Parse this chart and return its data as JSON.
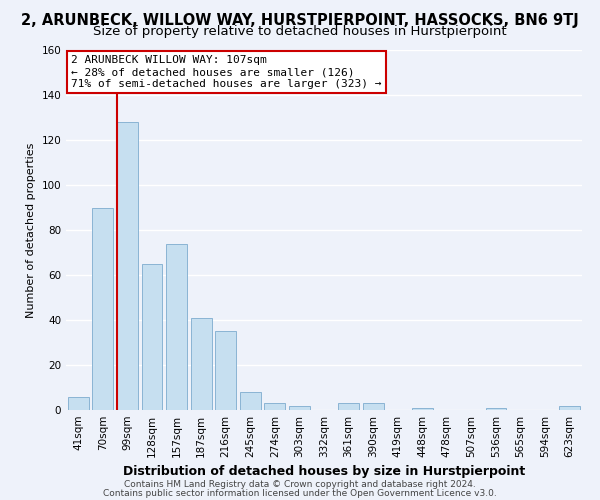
{
  "title": "2, ARUNBECK, WILLOW WAY, HURSTPIERPOINT, HASSOCKS, BN6 9TJ",
  "subtitle": "Size of property relative to detached houses in Hurstpierpoint",
  "xlabel": "Distribution of detached houses by size in Hurstpierpoint",
  "ylabel": "Number of detached properties",
  "bar_labels": [
    "41sqm",
    "70sqm",
    "99sqm",
    "128sqm",
    "157sqm",
    "187sqm",
    "216sqm",
    "245sqm",
    "274sqm",
    "303sqm",
    "332sqm",
    "361sqm",
    "390sqm",
    "419sqm",
    "448sqm",
    "478sqm",
    "507sqm",
    "536sqm",
    "565sqm",
    "594sqm",
    "623sqm"
  ],
  "bar_values": [
    6,
    90,
    128,
    65,
    74,
    41,
    35,
    8,
    3,
    2,
    0,
    3,
    3,
    0,
    1,
    0,
    0,
    1,
    0,
    0,
    2
  ],
  "bar_color": "#c6dff0",
  "bar_edge_color": "#8ab4d4",
  "ylim": [
    0,
    160
  ],
  "yticks": [
    0,
    20,
    40,
    60,
    80,
    100,
    120,
    140,
    160
  ],
  "vline_x": 2.0,
  "vline_color": "#cc0000",
  "annotation_line1": "2 ARUNBECK WILLOW WAY: 107sqm",
  "annotation_line2": "← 28% of detached houses are smaller (126)",
  "annotation_line3": "71% of semi-detached houses are larger (323) →",
  "footer1": "Contains HM Land Registry data © Crown copyright and database right 2024.",
  "footer2": "Contains public sector information licensed under the Open Government Licence v3.0.",
  "background_color": "#eef2fa",
  "plot_bg_color": "#eef2fa",
  "grid_color": "#ffffff",
  "title_fontsize": 10.5,
  "subtitle_fontsize": 9.5,
  "xlabel_fontsize": 9,
  "ylabel_fontsize": 8,
  "tick_fontsize": 7.5,
  "ann_fontsize": 8,
  "footer_fontsize": 6.5
}
